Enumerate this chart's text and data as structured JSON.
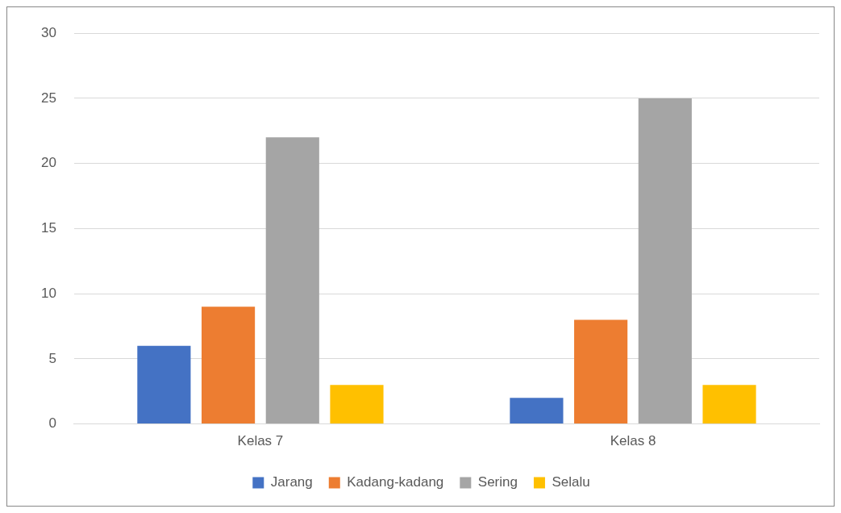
{
  "chart_data": {
    "type": "bar",
    "categories": [
      "Kelas 7",
      "Kelas 8"
    ],
    "series": [
      {
        "name": "Jarang",
        "color": "#4472c4",
        "values": [
          6,
          2
        ]
      },
      {
        "name": "Kadang-kadang",
        "color": "#ed7d31",
        "values": [
          9,
          8
        ]
      },
      {
        "name": "Sering",
        "color": "#a5a5a5",
        "values": [
          22,
          25
        ]
      },
      {
        "name": "Selalu",
        "color": "#ffc000",
        "values": [
          3,
          3
        ]
      }
    ],
    "ylim": [
      0,
      30
    ],
    "yticks": [
      0,
      5,
      10,
      15,
      20,
      25,
      30
    ],
    "grid": "y",
    "legend": "bottom"
  }
}
